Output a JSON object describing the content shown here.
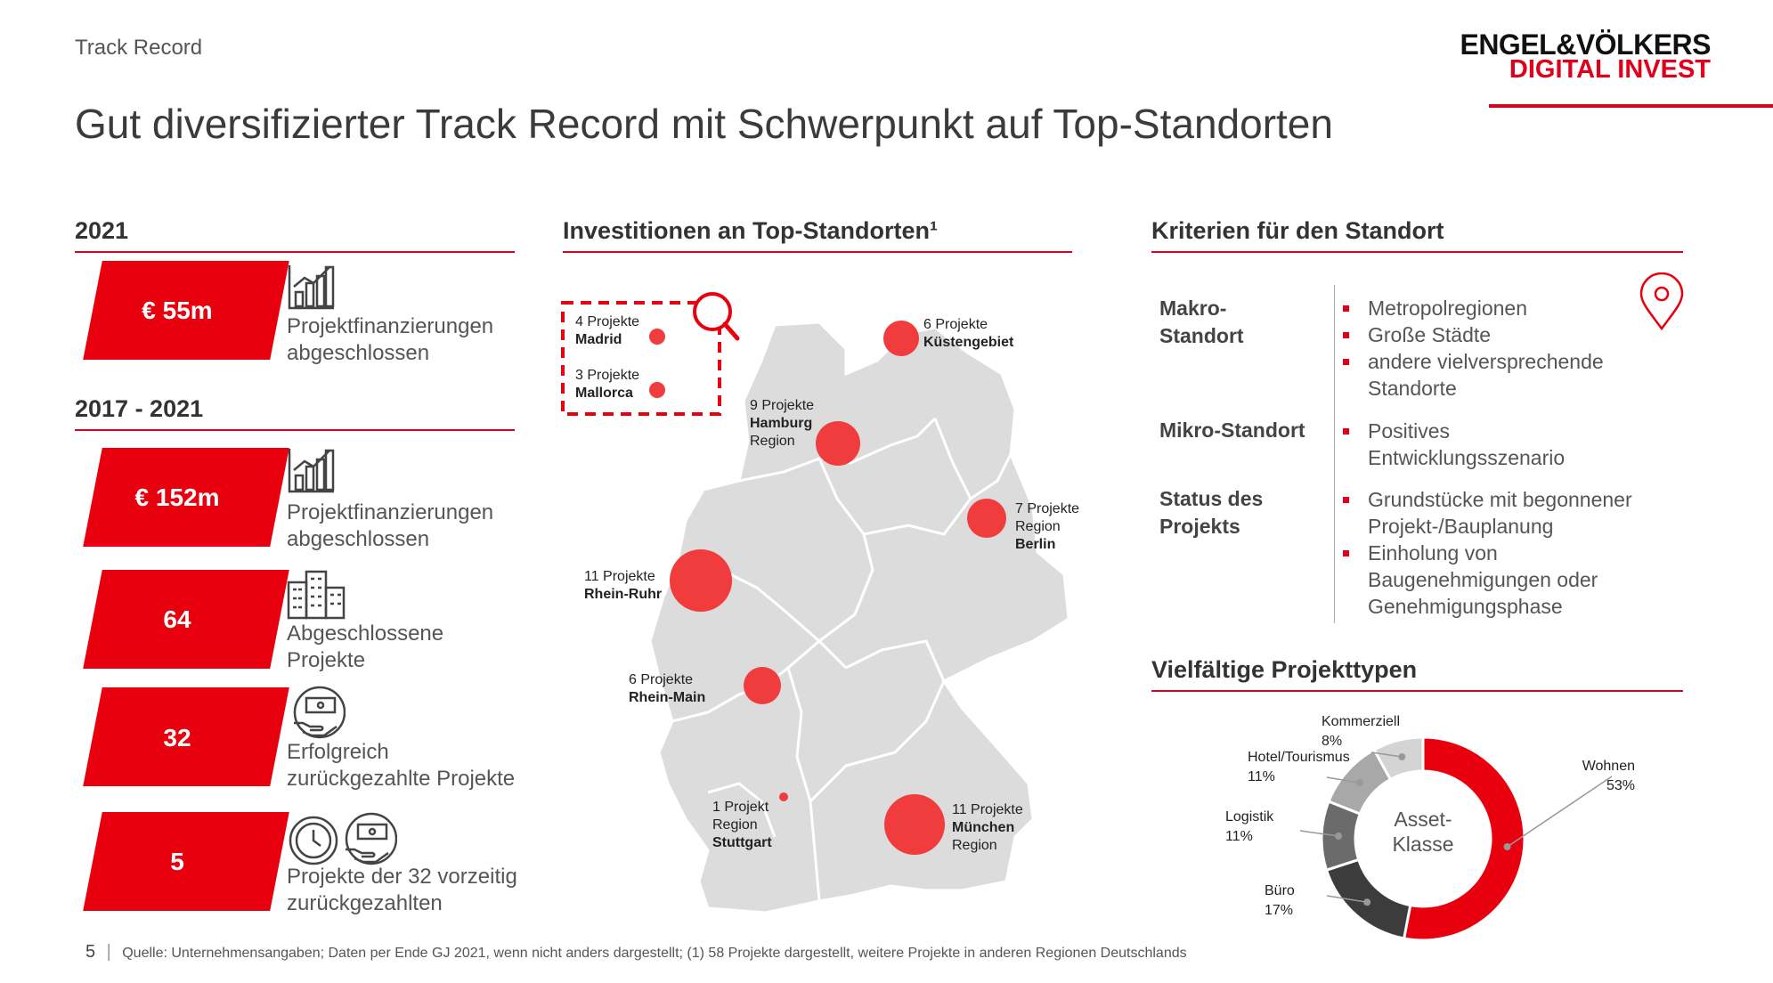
{
  "header": {
    "breadcrumb": "Track Record",
    "title": "Gut diversifizierter Track Record mit Schwerpunkt auf Top-Standorten",
    "logo_line1": "ENGEL&VÖLKERS",
    "logo_line2": "DIGITAL INVEST",
    "accent_color": "#e0001b"
  },
  "left": {
    "section_2021": "2021",
    "section_2017": "2017 - 2021",
    "kpis": [
      {
        "value": "€ 55m",
        "desc1": "Projektfinanzierungen",
        "desc2": "abgeschlossen",
        "icon": "bar-chart-icon"
      },
      {
        "value": "€ 152m",
        "desc1": "Projektfinanzierungen",
        "desc2": "abgeschlossen",
        "icon": "bar-chart-icon"
      },
      {
        "value": "64",
        "desc1": "Abgeschlossene",
        "desc2": "Projekte",
        "icon": "buildings-icon"
      },
      {
        "value": "32",
        "desc1": "Erfolgreich",
        "desc2": "zurückgezahlte Projekte",
        "icon": "money-hand-icon"
      },
      {
        "value": "5",
        "desc1": "Projekte der 32 vorzeitig",
        "desc2": "zurückgezahlten",
        "icon": "clock-money-icon"
      }
    ]
  },
  "map": {
    "title": "Investitionen an Top-Standorten¹",
    "locations": [
      {
        "count": "4 Projekte",
        "name": "Madrid",
        "region": ""
      },
      {
        "count": "3 Projekte",
        "name": "Mallorca",
        "region": ""
      },
      {
        "count": "6 Projekte",
        "name": "Küstengebiet",
        "region": ""
      },
      {
        "count": "9 Projekte",
        "name": "Hamburg",
        "region": "Region"
      },
      {
        "count": "7 Projekte",
        "name": "Region",
        "region": "Berlin"
      },
      {
        "count": "11 Projekte",
        "name": "Rhein-Ruhr",
        "region": ""
      },
      {
        "count": "6 Projekte",
        "name": "Rhein-Main",
        "region": ""
      },
      {
        "count": "1 Projekt",
        "name": "Region",
        "region": "Stuttgart"
      },
      {
        "count": "11 Projekte",
        "name": "München",
        "region": "Region"
      }
    ]
  },
  "criteria": {
    "title": "Kriterien für den Standort",
    "rows": [
      {
        "label1": "Makro-",
        "label2": "Standort",
        "bullets": [
          "Metropolregionen",
          "Große Städte",
          "andere vielversprechende",
          "Standorte"
        ]
      },
      {
        "label1": "Mikro-Standort",
        "label2": "",
        "bullets": [
          "Positives",
          "Entwicklungsszenario"
        ]
      },
      {
        "label1": "Status des",
        "label2": "Projekts",
        "bullets": [
          "Grundstücke mit begonnener",
          "Projekt-/Bauplanung",
          "Einholung von",
          "Baugenehmigungen oder",
          "Genehmigungsphase"
        ]
      }
    ]
  },
  "types": {
    "title": "Vielfältige Projekttypen",
    "center1": "Asset-",
    "center2": "Klasse"
  },
  "chart_data": {
    "type": "pie",
    "categories": [
      "Wohnen",
      "Büro",
      "Logistik",
      "Hotel/Tourismus",
      "Kommerziell"
    ],
    "values": [
      53,
      17,
      11,
      11,
      8
    ],
    "labels": [
      "53%",
      "17%",
      "11%",
      "11%",
      "8%"
    ],
    "colors": [
      "#e8000e",
      "#3c3c3c",
      "#6b6b6b",
      "#a8a8a8",
      "#d4d4d4"
    ]
  },
  "footer": {
    "page": "5",
    "source": "Quelle: Unternehmensangaben; Daten per Ende GJ 2021, wenn nicht anders dargestellt; (1) 58 Projekte dargestellt, weitere Projekte in anderen Regionen Deutschlands"
  }
}
